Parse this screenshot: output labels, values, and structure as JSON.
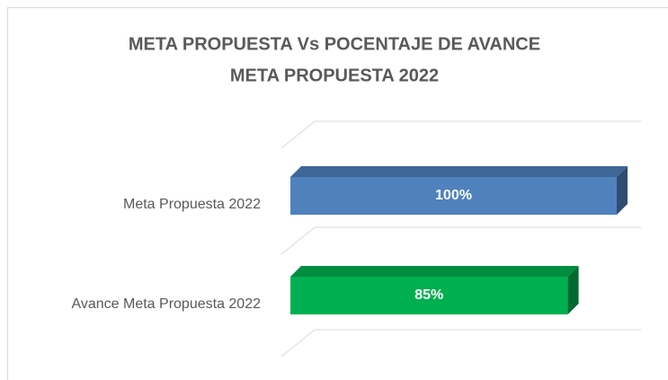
{
  "chart_data": {
    "type": "bar3d",
    "title": "META PROPUESTA Vs POCENTAJE DE AVANCE",
    "subtitle": "META PROPUESTA 2022",
    "categories": [
      "Meta Propuesta 2022",
      "Avance Meta Propuesta 2022"
    ],
    "values": [
      100,
      85
    ],
    "value_labels": [
      "100%",
      "85%"
    ],
    "colors": [
      "#4f81bd",
      "#00b050"
    ],
    "xlim": [
      0,
      100
    ]
  }
}
